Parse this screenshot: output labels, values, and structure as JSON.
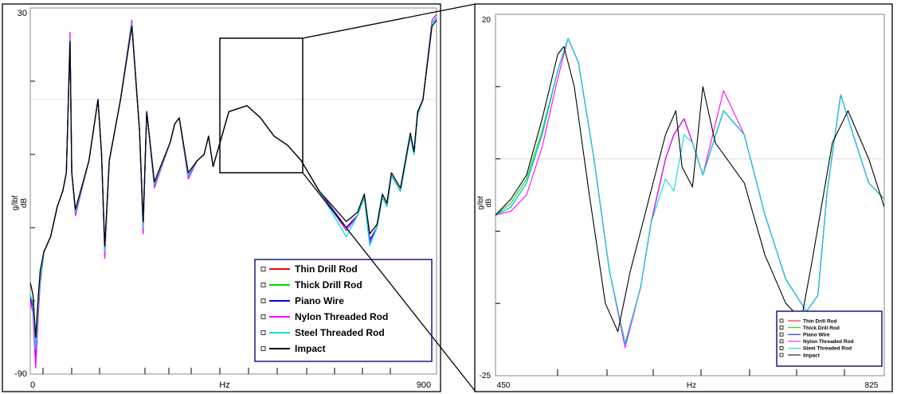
{
  "chart_data": [
    {
      "type": "line",
      "title": "",
      "xlabel": "Hz",
      "ylabel": "g/lbf\ndB",
      "xlim": [
        0,
        900
      ],
      "ylim": [
        -90,
        30
      ],
      "x_tick_labels": [
        "0",
        "900"
      ],
      "y_tick_labels": [
        "30",
        "-90"
      ],
      "grid": true,
      "legend_placement": "bottom-right",
      "series": [
        {
          "name": "Thin Drill Rod",
          "color": "#ff0000",
          "x": [
            0,
            6,
            12,
            18,
            22,
            30,
            45,
            60,
            72,
            80,
            88,
            92,
            100,
            130,
            150,
            158,
            165,
            175,
            200,
            225,
            242,
            250,
            258,
            275,
            310,
            320,
            330,
            350,
            370,
            385,
            395,
            405,
            440,
            480,
            510,
            520,
            540,
            570,
            600,
            640,
            700,
            725,
            740,
            752,
            768,
            780,
            790,
            800,
            820,
            842,
            850,
            858,
            870,
            890,
            900
          ],
          "y": [
            -65,
            -68,
            -84,
            -68,
            -60,
            -50,
            -45,
            -35,
            -30,
            -24,
            20,
            -24,
            -37,
            -20,
            0,
            -18,
            -50,
            -20,
            0,
            25,
            -10,
            -42,
            -4,
            -28,
            -14,
            -8,
            -6,
            -25,
            -20,
            -18,
            -12,
            -22,
            -4,
            -2,
            -6,
            -8,
            -12,
            -15,
            -20,
            -30,
            -42,
            -38,
            -32,
            -46,
            -42,
            -32,
            -35,
            -25,
            -30,
            -12,
            -18,
            -5,
            0,
            25,
            27
          ]
        },
        {
          "name": "Thick Drill Rod",
          "color": "#00dd00",
          "x": [
            0,
            6,
            12,
            18,
            22,
            30,
            45,
            60,
            72,
            80,
            88,
            92,
            100,
            130,
            150,
            158,
            165,
            175,
            200,
            225,
            242,
            250,
            258,
            275,
            310,
            320,
            330,
            350,
            370,
            385,
            395,
            405,
            440,
            480,
            510,
            520,
            540,
            570,
            600,
            640,
            700,
            725,
            740,
            752,
            768,
            780,
            790,
            800,
            820,
            842,
            850,
            858,
            870,
            890,
            900
          ],
          "y": [
            -64,
            -67,
            -83,
            -67,
            -59,
            -50,
            -45,
            -35,
            -30,
            -24,
            20,
            -24,
            -37,
            -20,
            0,
            -18,
            -50,
            -20,
            0,
            25,
            -10,
            -42,
            -4,
            -28,
            -14,
            -8,
            -6,
            -25,
            -20,
            -18,
            -12,
            -22,
            -4,
            -2,
            -6,
            -8,
            -12,
            -15,
            -20,
            -30,
            -42,
            -38,
            -32,
            -46,
            -42,
            -32,
            -35,
            -25,
            -30,
            -12,
            -18,
            -5,
            0,
            25,
            27
          ]
        },
        {
          "name": "Piano Wire",
          "color": "#0000ff",
          "x": [
            0,
            6,
            12,
            18,
            22,
            30,
            45,
            60,
            72,
            80,
            88,
            92,
            100,
            130,
            150,
            158,
            165,
            175,
            200,
            225,
            242,
            250,
            258,
            275,
            310,
            320,
            330,
            350,
            370,
            385,
            395,
            405,
            440,
            480,
            510,
            520,
            540,
            570,
            600,
            640,
            700,
            725,
            740,
            752,
            768,
            780,
            790,
            800,
            820,
            842,
            850,
            858,
            870,
            890,
            900
          ],
          "y": [
            -65,
            -68,
            -84,
            -68,
            -60,
            -50,
            -45,
            -35,
            -30,
            -24,
            20,
            -24,
            -37,
            -20,
            0,
            -18,
            -50,
            -20,
            0,
            25,
            -10,
            -42,
            -4,
            -28,
            -14,
            -8,
            -6,
            -25,
            -20,
            -18,
            -12,
            -22,
            -4,
            -2,
            -6,
            -8,
            -12,
            -15,
            -20,
            -30,
            -42,
            -38,
            -32,
            -46,
            -42,
            -32,
            -35,
            -25,
            -30,
            -12,
            -18,
            -5,
            0,
            25,
            27
          ]
        },
        {
          "name": "Nylon Threaded Rod",
          "color": "#ff00ff",
          "x": [
            0,
            6,
            12,
            18,
            22,
            30,
            45,
            60,
            72,
            80,
            88,
            92,
            100,
            130,
            150,
            158,
            165,
            175,
            200,
            225,
            242,
            250,
            258,
            275,
            310,
            320,
            330,
            350,
            370,
            385,
            395,
            405,
            440,
            480,
            510,
            520,
            540,
            570,
            600,
            640,
            700,
            725,
            740,
            752,
            768,
            780,
            790,
            800,
            820,
            842,
            850,
            858,
            870,
            890,
            900
          ],
          "y": [
            -66,
            -70,
            -88,
            -70,
            -60,
            -50,
            -45,
            -35,
            -30,
            -24,
            22,
            -24,
            -38,
            -20,
            0,
            -18,
            -52,
            -20,
            0,
            26,
            -10,
            -44,
            -4,
            -29,
            -14,
            -8,
            -6,
            -26,
            -20,
            -18,
            -12,
            -22,
            -4,
            -2,
            -6,
            -8,
            -12,
            -15,
            -20,
            -30,
            -43,
            -38,
            -32,
            -47,
            -42,
            -32,
            -35,
            -25,
            -30,
            -12,
            -18,
            -5,
            0,
            26,
            28
          ]
        },
        {
          "name": "Steel Threaded Rod",
          "color": "#00e0e0",
          "x": [
            0,
            6,
            12,
            18,
            22,
            30,
            45,
            60,
            72,
            80,
            88,
            92,
            100,
            130,
            150,
            158,
            165,
            175,
            200,
            225,
            242,
            250,
            258,
            275,
            310,
            320,
            330,
            350,
            370,
            385,
            395,
            405,
            440,
            480,
            510,
            520,
            540,
            570,
            600,
            640,
            700,
            725,
            740,
            752,
            768,
            780,
            790,
            800,
            820,
            842,
            850,
            858,
            870,
            890,
            900
          ],
          "y": [
            -64,
            -67,
            -82,
            -67,
            -59,
            -50,
            -45,
            -35,
            -30,
            -24,
            20,
            -24,
            -37,
            -20,
            0,
            -18,
            -50,
            -20,
            0,
            25,
            -10,
            -42,
            -4,
            -28,
            -14,
            -8,
            -6,
            -25,
            -20,
            -18,
            -12,
            -22,
            -4,
            -2,
            -6,
            -8,
            -12,
            -15,
            -20,
            -30,
            -45,
            -38,
            -32,
            -48,
            -42,
            -32,
            -35,
            -25,
            -30,
            -12,
            -18,
            -5,
            0,
            25,
            27
          ]
        },
        {
          "name": "Impact",
          "color": "#000000",
          "x": [
            0,
            6,
            12,
            18,
            22,
            30,
            45,
            60,
            72,
            80,
            88,
            92,
            100,
            130,
            150,
            158,
            165,
            175,
            200,
            225,
            242,
            250,
            258,
            275,
            310,
            320,
            330,
            350,
            370,
            385,
            395,
            405,
            440,
            480,
            510,
            520,
            540,
            570,
            600,
            640,
            700,
            725,
            740,
            752,
            768,
            780,
            790,
            800,
            820,
            842,
            850,
            858,
            870,
            890,
            900
          ],
          "y": [
            -60,
            -64,
            -78,
            -64,
            -56,
            -50,
            -45,
            -35,
            -30,
            -24,
            19,
            -24,
            -36,
            -20,
            0,
            -18,
            -48,
            -20,
            0,
            24,
            -10,
            -40,
            -4,
            -27,
            -14,
            -8,
            -6,
            -24,
            -20,
            -18,
            -12,
            -22,
            -4,
            -2,
            -6,
            -8,
            -12,
            -15,
            -20,
            -30,
            -40,
            -37,
            -31,
            -44,
            -41,
            -31,
            -34,
            -24,
            -29,
            -11,
            -17,
            -4,
            0,
            24,
            26
          ]
        }
      ]
    },
    {
      "type": "line",
      "title": "",
      "xlabel": "Hz",
      "ylabel": "g/lbf\ndB",
      "xlim": [
        450,
        825
      ],
      "ylim": [
        -25,
        20
      ],
      "x_tick_labels": [
        "450",
        "825"
      ],
      "y_tick_labels": [
        "20",
        "-25"
      ],
      "grid": true,
      "legend_placement": "bottom-right",
      "series": [
        {
          "name": "Thin Drill Rod",
          "color": "#ff0000",
          "x": [
            450,
            465,
            480,
            495,
            510,
            520,
            530,
            545,
            560,
            575,
            590,
            600,
            614,
            622,
            632,
            640,
            650,
            670,
            690,
            710,
            730,
            750,
            761,
            770,
            783,
            795,
            810,
            825
          ],
          "y": [
            -5,
            -4,
            -1,
            5,
            13,
            17,
            14,
            2,
            -12,
            -21,
            -14,
            -6,
            2,
            5,
            7,
            4,
            0,
            8,
            5,
            -5,
            -13,
            -17,
            -15,
            -2,
            10,
            5,
            -1,
            -3
          ]
        },
        {
          "name": "Thick Drill Rod",
          "color": "#00dd00",
          "x": [
            450,
            465,
            480,
            495,
            510,
            520,
            530,
            545,
            560,
            575,
            590,
            600,
            614,
            622,
            632,
            640,
            650,
            670,
            690,
            710,
            730,
            750,
            761,
            770,
            783,
            795,
            810,
            825
          ],
          "y": [
            -5,
            -3.5,
            -0.5,
            5.5,
            13,
            17,
            14,
            2,
            -12,
            -21,
            -14,
            -6,
            2,
            5,
            7,
            4,
            0,
            8,
            5,
            -5,
            -13,
            -17,
            -15,
            -2,
            10,
            5,
            -1,
            -3
          ]
        },
        {
          "name": "Piano Wire",
          "color": "#0000ff",
          "x": [
            450,
            465,
            480,
            495,
            510,
            520,
            530,
            545,
            560,
            575,
            590,
            600,
            614,
            622,
            632,
            640,
            650,
            670,
            690,
            710,
            730,
            750,
            761,
            770,
            783,
            795,
            810,
            825
          ],
          "y": [
            -5,
            -4,
            -1,
            5,
            13,
            17,
            14,
            2,
            -12,
            -21,
            -14,
            -6,
            2,
            5,
            7,
            4,
            0,
            8,
            5,
            -5,
            -13,
            -17,
            -15,
            -2,
            10,
            5,
            -1,
            -3
          ]
        },
        {
          "name": "Nylon Threaded Rod",
          "color": "#ff00ff",
          "x": [
            450,
            465,
            480,
            495,
            510,
            520,
            530,
            545,
            560,
            575,
            590,
            600,
            614,
            622,
            632,
            640,
            650,
            670,
            690,
            710,
            730,
            750,
            761,
            770,
            783,
            795,
            810,
            825
          ],
          "y": [
            -5,
            -4.5,
            -2.5,
            3.5,
            12,
            17,
            14,
            2,
            -12,
            -21.5,
            -14,
            -6,
            2,
            5,
            7,
            4,
            0,
            10.5,
            5,
            -5,
            -13,
            -17,
            -15,
            -2,
            10,
            5,
            -1,
            -3
          ]
        },
        {
          "name": "Steel Threaded Rod",
          "color": "#00e0e0",
          "x": [
            450,
            465,
            480,
            495,
            510,
            520,
            530,
            545,
            560,
            575,
            590,
            600,
            614,
            622,
            632,
            640,
            650,
            670,
            690,
            710,
            730,
            750,
            761,
            770,
            783,
            795,
            810,
            825
          ],
          "y": [
            -5,
            -4,
            -1,
            5,
            13,
            17,
            14,
            2,
            -12,
            -21,
            -14,
            -6,
            -0.5,
            -2,
            5,
            4,
            0,
            8,
            5,
            -5,
            -13,
            -17,
            -15,
            -2,
            10,
            5,
            -1,
            -3
          ]
        },
        {
          "name": "Impact",
          "color": "#000000",
          "x": [
            450,
            465,
            480,
            495,
            510,
            516,
            526,
            540,
            556,
            568,
            580,
            600,
            614,
            624,
            630,
            640,
            650,
            662,
            690,
            710,
            730,
            745,
            755,
            775,
            790,
            810,
            825
          ],
          "y": [
            -5,
            -3,
            0,
            7,
            15,
            16,
            11,
            -2,
            -16,
            -19.5,
            -12,
            -2,
            5,
            8,
            1,
            -1.5,
            11,
            4,
            -1,
            -10,
            -16,
            -18,
            -11,
            4,
            8,
            2,
            -4
          ]
        }
      ]
    }
  ]
}
